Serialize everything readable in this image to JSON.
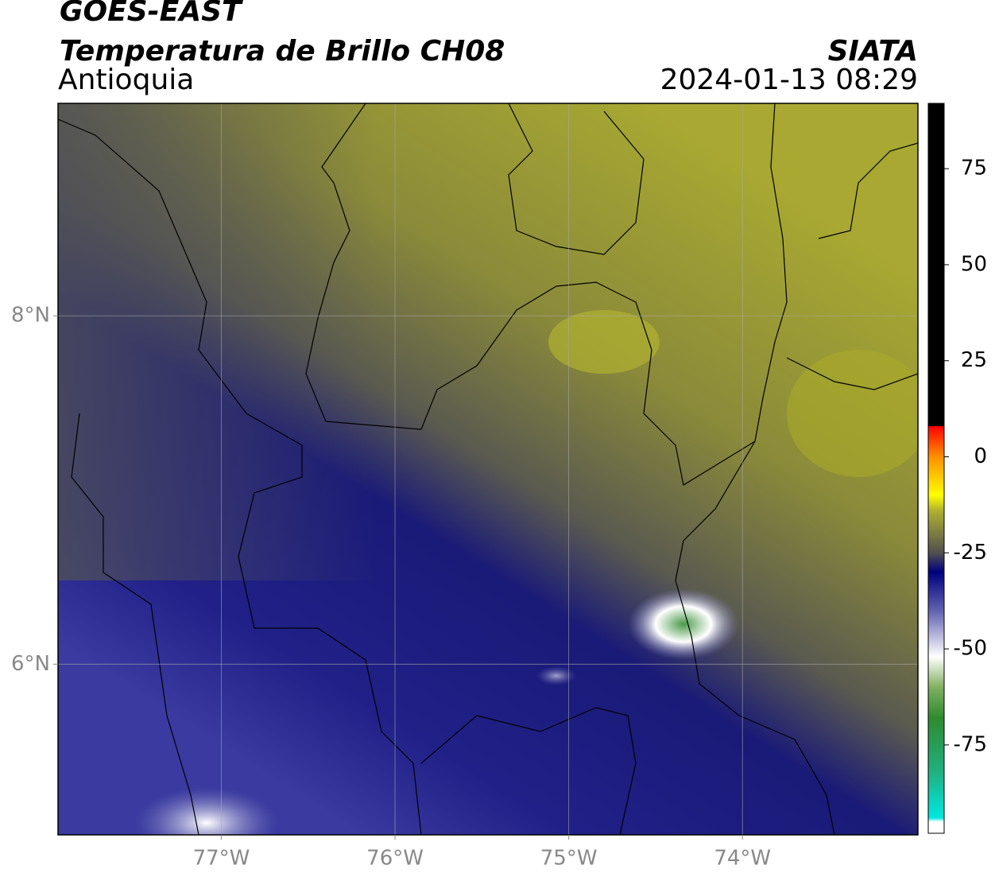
{
  "header": {
    "title": "GOES-EAST",
    "subtitle": "Temperatura de Brillo CH08",
    "region": "Antioquia",
    "source": "SIATA",
    "timestamp": "2024-01-13 08:29"
  },
  "map": {
    "xlim": [
      -77.94,
      -72.99
    ],
    "ylim": [
      5.02,
      9.22
    ],
    "xticks": [
      {
        "value": -77,
        "label": "77°W"
      },
      {
        "value": -76,
        "label": "76°W"
      },
      {
        "value": -75,
        "label": "75°W"
      },
      {
        "value": -74,
        "label": "74°W"
      }
    ],
    "yticks": [
      {
        "value": 8,
        "label": "8°N"
      },
      {
        "value": 6,
        "label": "6°N"
      }
    ],
    "grid": true
  },
  "colorbar": {
    "lim": [
      -98,
      92
    ],
    "ticks": [
      75,
      50,
      25,
      0,
      -25,
      -50,
      -75
    ],
    "stops": [
      {
        "value": -98,
        "color": "#ffffff"
      },
      {
        "value": -95,
        "color": "#ffffff"
      },
      {
        "value": -94,
        "color": "#00e8e0"
      },
      {
        "value": -82,
        "color": "#20b080"
      },
      {
        "value": -68,
        "color": "#2e8b2e"
      },
      {
        "value": -60,
        "color": "#80b060"
      },
      {
        "value": -52,
        "color": "#ffffff"
      },
      {
        "value": -40,
        "color": "#6060b0"
      },
      {
        "value": -30,
        "color": "#000080"
      },
      {
        "value": -25,
        "color": "#505050"
      },
      {
        "value": -14,
        "color": "#b0b030"
      },
      {
        "value": -10,
        "color": "#ffff00"
      },
      {
        "value": 0,
        "color": "#ff9000"
      },
      {
        "value": 8,
        "color": "#ff0000"
      },
      {
        "value": 8.01,
        "color": "#000000"
      },
      {
        "value": 92,
        "color": "#000000"
      }
    ]
  }
}
